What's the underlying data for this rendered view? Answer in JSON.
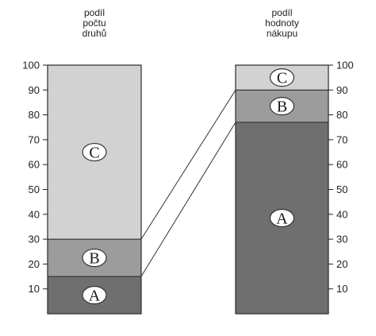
{
  "chart_data": {
    "type": "stacked-bar",
    "ylim": [
      0,
      100
    ],
    "y_ticks": [
      10,
      20,
      30,
      40,
      50,
      60,
      70,
      80,
      90,
      100
    ],
    "bars": [
      {
        "title_lines": [
          "podíl",
          "počtu",
          "druhů"
        ],
        "segments": [
          {
            "label": "A",
            "from": 0,
            "to": 15,
            "color": "#6f6f6f"
          },
          {
            "label": "B",
            "from": 15,
            "to": 30,
            "color": "#9c9c9c"
          },
          {
            "label": "C",
            "from": 30,
            "to": 100,
            "color": "#d2d2d2"
          }
        ]
      },
      {
        "title_lines": [
          "podíl",
          "hodnoty",
          "nákupu"
        ],
        "segments": [
          {
            "label": "A",
            "from": 0,
            "to": 77,
            "color": "#6f6f6f"
          },
          {
            "label": "B",
            "from": 77,
            "to": 90,
            "color": "#9c9c9c"
          },
          {
            "label": "C",
            "from": 90,
            "to": 100,
            "color": "#d2d2d2"
          }
        ]
      }
    ],
    "connectors": [
      {
        "left_value": 15,
        "right_value": 77
      },
      {
        "left_value": 30,
        "right_value": 90
      }
    ]
  }
}
